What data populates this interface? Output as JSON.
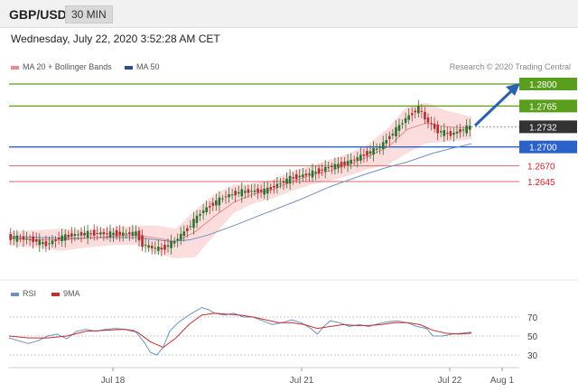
{
  "header": {
    "symbol": "GBP/USD",
    "timeframe": "30 MIN"
  },
  "datetime": "Wednesday, July 22, 2020 3:52:28 AM CET",
  "legend": {
    "ma20_label": "MA 20 + Bollinger Bands",
    "ma50_label": "MA 50",
    "rsi_label": "RSI",
    "ma9_label": "9MA"
  },
  "credit": "Research © 2020 Trading Central",
  "colors": {
    "ma20": "#f08a8a",
    "bollinger": "#f9d2d2",
    "ma50": "#7090c0",
    "up": "#2f6f2f",
    "down": "#b03030",
    "green_level": "#5a9e1e",
    "blue_level": "#2a62c8",
    "red_level": "#d96a6a",
    "arrow": "#2a62b0",
    "current": "#333333"
  },
  "chart_data": {
    "type": "candlestick",
    "price_levels": [
      {
        "label": "1.2800",
        "value": 1.28,
        "kind": "resistance"
      },
      {
        "label": "1.2765",
        "value": 1.2765,
        "kind": "resistance"
      },
      {
        "label": "1.2732",
        "value": 1.2732,
        "kind": "current"
      },
      {
        "label": "1.2700",
        "value": 1.27,
        "kind": "pivot"
      },
      {
        "label": "1.2670",
        "value": 1.267,
        "kind": "support"
      },
      {
        "label": "1.2645",
        "value": 1.2645,
        "kind": "support"
      }
    ],
    "x_ticks": [
      "Jul 18",
      "Jul 21",
      "Jul 22",
      "Aug 1"
    ],
    "price_range": [
      1.252,
      1.2815
    ],
    "price_path": [
      [
        0,
        1.2556
      ],
      [
        4,
        1.2555
      ],
      [
        8,
        1.2552
      ],
      [
        12,
        1.2545
      ],
      [
        16,
        1.2555
      ],
      [
        20,
        1.256
      ],
      [
        24,
        1.2562
      ],
      [
        28,
        1.2563
      ],
      [
        32,
        1.2562
      ],
      [
        36,
        1.2562
      ],
      [
        40,
        1.2563
      ],
      [
        42,
        1.2545
      ],
      [
        45,
        1.254
      ],
      [
        48,
        1.2538
      ],
      [
        52,
        1.255
      ],
      [
        56,
        1.257
      ],
      [
        60,
        1.2595
      ],
      [
        64,
        1.261
      ],
      [
        68,
        1.2622
      ],
      [
        72,
        1.2628
      ],
      [
        76,
        1.263
      ],
      [
        80,
        1.263
      ],
      [
        84,
        1.264
      ],
      [
        88,
        1.265
      ],
      [
        92,
        1.2655
      ],
      [
        96,
        1.266
      ],
      [
        100,
        1.2668
      ],
      [
        104,
        1.2672
      ],
      [
        108,
        1.268
      ],
      [
        112,
        1.269
      ],
      [
        116,
        1.27
      ],
      [
        120,
        1.2722
      ],
      [
        124,
        1.2745
      ],
      [
        128,
        1.2762
      ],
      [
        130,
        1.2745
      ],
      [
        134,
        1.2725
      ],
      [
        138,
        1.272
      ],
      [
        142,
        1.2728
      ],
      [
        144,
        1.2732
      ]
    ],
    "ma20_path": [
      [
        0,
        1.2555
      ],
      [
        8,
        1.2553
      ],
      [
        16,
        1.2552
      ],
      [
        24,
        1.2555
      ],
      [
        32,
        1.2558
      ],
      [
        40,
        1.256
      ],
      [
        46,
        1.2555
      ],
      [
        52,
        1.255
      ],
      [
        58,
        1.2565
      ],
      [
        64,
        1.259
      ],
      [
        70,
        1.2612
      ],
      [
        76,
        1.2625
      ],
      [
        82,
        1.2632
      ],
      [
        88,
        1.2645
      ],
      [
        94,
        1.2655
      ],
      [
        100,
        1.2662
      ],
      [
        106,
        1.2672
      ],
      [
        112,
        1.2685
      ],
      [
        118,
        1.27
      ],
      [
        124,
        1.2728
      ],
      [
        130,
        1.2738
      ],
      [
        136,
        1.2732
      ],
      [
        144,
        1.273
      ]
    ],
    "band_upper": [
      [
        0,
        1.2565
      ],
      [
        8,
        1.2568
      ],
      [
        16,
        1.257
      ],
      [
        24,
        1.2568
      ],
      [
        32,
        1.2572
      ],
      [
        40,
        1.2575
      ],
      [
        46,
        1.2575
      ],
      [
        52,
        1.257
      ],
      [
        58,
        1.26
      ],
      [
        64,
        1.2625
      ],
      [
        70,
        1.264
      ],
      [
        76,
        1.2642
      ],
      [
        82,
        1.2648
      ],
      [
        88,
        1.2662
      ],
      [
        94,
        1.267
      ],
      [
        100,
        1.268
      ],
      [
        106,
        1.269
      ],
      [
        112,
        1.2705
      ],
      [
        118,
        1.273
      ],
      [
        124,
        1.2765
      ],
      [
        130,
        1.277
      ],
      [
        136,
        1.2758
      ],
      [
        144,
        1.2748
      ]
    ],
    "band_lower": [
      [
        0,
        1.2543
      ],
      [
        8,
        1.254
      ],
      [
        16,
        1.2535
      ],
      [
        24,
        1.254
      ],
      [
        32,
        1.2544
      ],
      [
        40,
        1.2545
      ],
      [
        46,
        1.253
      ],
      [
        52,
        1.2523
      ],
      [
        58,
        1.2525
      ],
      [
        64,
        1.256
      ],
      [
        70,
        1.2595
      ],
      [
        76,
        1.261
      ],
      [
        82,
        1.2618
      ],
      [
        88,
        1.263
      ],
      [
        94,
        1.264
      ],
      [
        100,
        1.2646
      ],
      [
        106,
        1.2655
      ],
      [
        112,
        1.2665
      ],
      [
        118,
        1.2672
      ],
      [
        124,
        1.269
      ],
      [
        130,
        1.2706
      ],
      [
        136,
        1.2708
      ],
      [
        144,
        1.2712
      ]
    ],
    "ma50_path": [
      [
        0,
        1.2558
      ],
      [
        10,
        1.2556
      ],
      [
        20,
        1.2555
      ],
      [
        30,
        1.2556
      ],
      [
        40,
        1.2556
      ],
      [
        50,
        1.255
      ],
      [
        56,
        1.2552
      ],
      [
        62,
        1.256
      ],
      [
        70,
        1.2575
      ],
      [
        80,
        1.2595
      ],
      [
        90,
        1.2615
      ],
      [
        100,
        1.2637
      ],
      [
        110,
        1.2655
      ],
      [
        118,
        1.2668
      ],
      [
        124,
        1.2676
      ],
      [
        132,
        1.269
      ],
      [
        138,
        1.2698
      ],
      [
        144,
        1.2705
      ]
    ],
    "rsi": {
      "ticks": [
        70,
        50,
        30
      ],
      "range": [
        20,
        85
      ],
      "rsi_path": [
        [
          0,
          48
        ],
        [
          3,
          45
        ],
        [
          6,
          42
        ],
        [
          9,
          45
        ],
        [
          12,
          50
        ],
        [
          15,
          52
        ],
        [
          18,
          47
        ],
        [
          21,
          55
        ],
        [
          24,
          57
        ],
        [
          27,
          55
        ],
        [
          30,
          57
        ],
        [
          33,
          58
        ],
        [
          36,
          57
        ],
        [
          39,
          56
        ],
        [
          42,
          44
        ],
        [
          44,
          33
        ],
        [
          46,
          30
        ],
        [
          48,
          38
        ],
        [
          50,
          55
        ],
        [
          53,
          65
        ],
        [
          56,
          72
        ],
        [
          58,
          76
        ],
        [
          60,
          80
        ],
        [
          62,
          78
        ],
        [
          64,
          74
        ],
        [
          67,
          72
        ],
        [
          70,
          74
        ],
        [
          73,
          70
        ],
        [
          76,
          70
        ],
        [
          79,
          66
        ],
        [
          82,
          62
        ],
        [
          85,
          64
        ],
        [
          88,
          67
        ],
        [
          91,
          64
        ],
        [
          94,
          58
        ],
        [
          96,
          52
        ],
        [
          98,
          60
        ],
        [
          100,
          66
        ],
        [
          103,
          64
        ],
        [
          106,
          60
        ],
        [
          109,
          62
        ],
        [
          112,
          60
        ],
        [
          115,
          63
        ],
        [
          118,
          65
        ],
        [
          121,
          66
        ],
        [
          124,
          64
        ],
        [
          127,
          60
        ],
        [
          130,
          58
        ],
        [
          132,
          50
        ],
        [
          135,
          50
        ],
        [
          138,
          52
        ],
        [
          141,
          53
        ],
        [
          144,
          54
        ]
      ],
      "ma9_path": [
        [
          0,
          50
        ],
        [
          6,
          48
        ],
        [
          12,
          48
        ],
        [
          18,
          50
        ],
        [
          24,
          55
        ],
        [
          30,
          56
        ],
        [
          36,
          57
        ],
        [
          40,
          54
        ],
        [
          44,
          44
        ],
        [
          48,
          38
        ],
        [
          52,
          48
        ],
        [
          56,
          62
        ],
        [
          60,
          72
        ],
        [
          64,
          74
        ],
        [
          68,
          73
        ],
        [
          72,
          72
        ],
        [
          76,
          70
        ],
        [
          80,
          67
        ],
        [
          84,
          64
        ],
        [
          88,
          64
        ],
        [
          92,
          62
        ],
        [
          96,
          58
        ],
        [
          100,
          60
        ],
        [
          104,
          62
        ],
        [
          108,
          61
        ],
        [
          112,
          61
        ],
        [
          116,
          62
        ],
        [
          120,
          64
        ],
        [
          124,
          64
        ],
        [
          128,
          62
        ],
        [
          132,
          56
        ],
        [
          136,
          53
        ],
        [
          140,
          52
        ],
        [
          144,
          53
        ]
      ]
    }
  }
}
